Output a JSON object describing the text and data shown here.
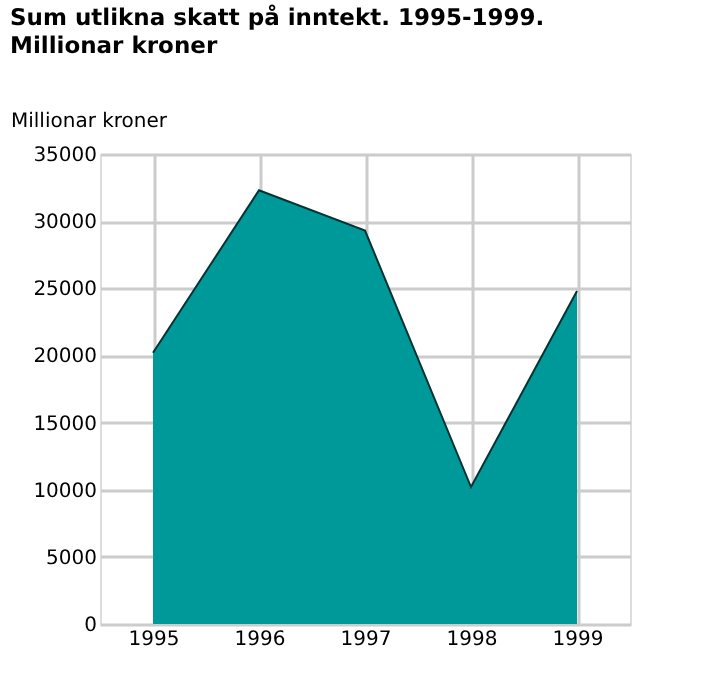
{
  "chart_data": {
    "type": "area",
    "title": "Sum utlikna skatt på inntekt.  1995-1999. Millionar kroner",
    "ylabel": "Millionar kroner",
    "categories": [
      "1995",
      "1996",
      "1997",
      "1998",
      "1999"
    ],
    "series": [
      {
        "color": "#009999",
        "values": [
          20200,
          32300,
          29300,
          10200,
          24800
        ]
      }
    ],
    "ylim": [
      0,
      35000
    ],
    "yticks": [
      0,
      5000,
      10000,
      15000,
      20000,
      25000,
      30000,
      35000
    ],
    "grid": true
  }
}
